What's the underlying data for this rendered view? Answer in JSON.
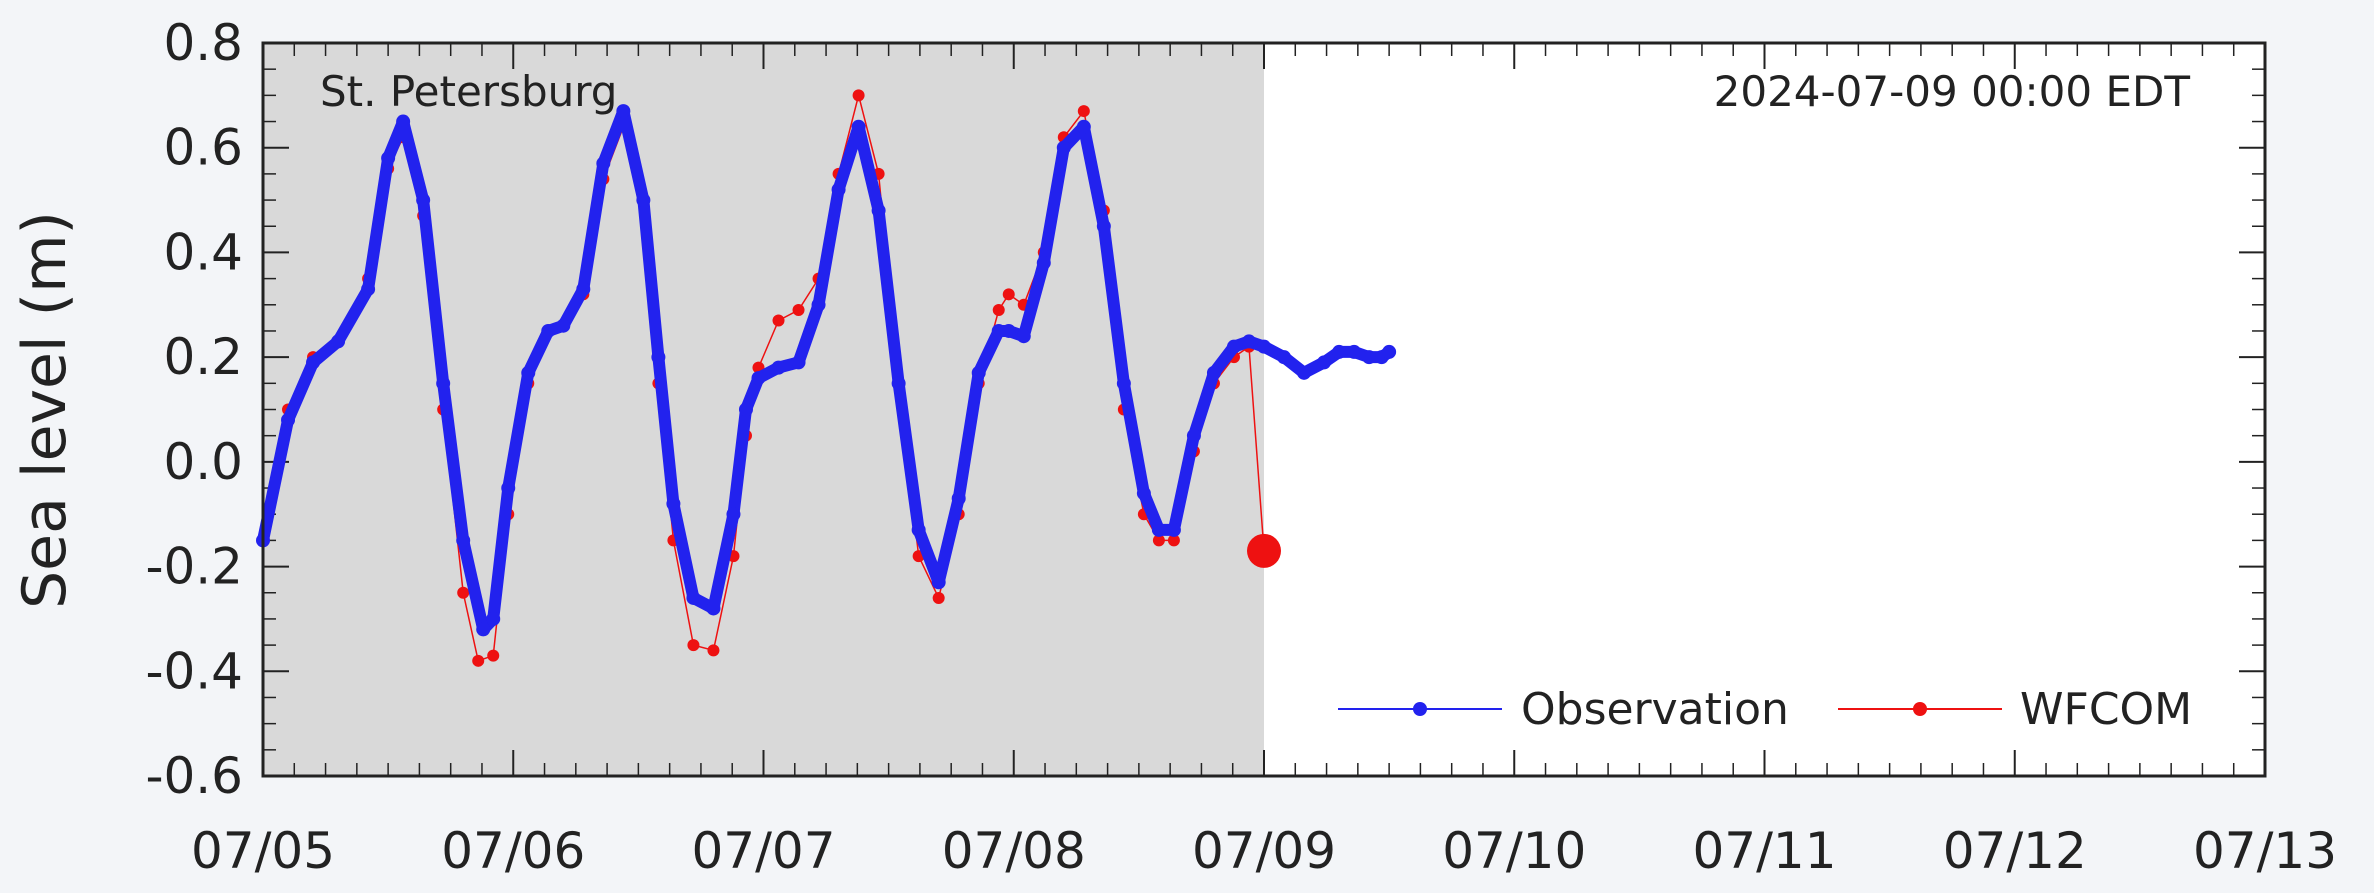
{
  "chart_data": {
    "type": "line",
    "title": "",
    "ylabel": "Sea level (m)",
    "xlabel": "",
    "station": "St. Petersburg",
    "timestamp": "2024-07-09 00:00 EDT",
    "xlim": [
      0,
      8
    ],
    "ylim": [
      -0.6,
      0.8
    ],
    "xtick_values": [
      0,
      1,
      2,
      3,
      4,
      5,
      6,
      7,
      8
    ],
    "xtick_labels": [
      "07/05",
      "07/06",
      "07/07",
      "07/08",
      "07/09",
      "07/10",
      "07/11",
      "07/12",
      "07/13"
    ],
    "ytick_values": [
      -0.6,
      -0.4,
      -0.2,
      0.0,
      0.2,
      0.4,
      0.6,
      0.8
    ],
    "ytick_labels": [
      "-0.6",
      "-0.4",
      "-0.2",
      "0.0",
      "0.2",
      "0.4",
      "0.6",
      "0.8"
    ],
    "x_unit": "days after 07/05 00:00",
    "shaded_region": [
      0,
      4
    ],
    "shaded_color": "#d9d9d9",
    "grid": false,
    "legend_position": "bottom-right",
    "series": [
      {
        "name": "Observation",
        "color": "#2222ee",
        "x": [
          0.0,
          0.1,
          0.2,
          0.3,
          0.42,
          0.5,
          0.56,
          0.64,
          0.72,
          0.8,
          0.88,
          0.92,
          0.98,
          1.06,
          1.14,
          1.2,
          1.28,
          1.36,
          1.44,
          1.52,
          1.58,
          1.64,
          1.72,
          1.8,
          1.88,
          1.93,
          1.98,
          2.06,
          2.14,
          2.22,
          2.3,
          2.38,
          2.46,
          2.54,
          2.62,
          2.7,
          2.78,
          2.86,
          2.94,
          2.98,
          3.04,
          3.12,
          3.2,
          3.28,
          3.36,
          3.44,
          3.52,
          3.58,
          3.64,
          3.72,
          3.8,
          3.88,
          3.94,
          4.0,
          4.08,
          4.16,
          4.24,
          4.3,
          4.36,
          4.42,
          4.47,
          4.5
        ],
        "values": [
          -0.15,
          0.08,
          0.19,
          0.23,
          0.33,
          0.58,
          0.65,
          0.5,
          0.15,
          -0.15,
          -0.32,
          -0.3,
          -0.05,
          0.17,
          0.25,
          0.26,
          0.33,
          0.57,
          0.67,
          0.5,
          0.2,
          -0.08,
          -0.26,
          -0.28,
          -0.1,
          0.1,
          0.16,
          0.18,
          0.19,
          0.3,
          0.52,
          0.64,
          0.48,
          0.15,
          -0.13,
          -0.23,
          -0.07,
          0.17,
          0.25,
          0.25,
          0.24,
          0.38,
          0.6,
          0.64,
          0.45,
          0.15,
          -0.06,
          -0.13,
          -0.13,
          0.05,
          0.17,
          0.22,
          0.23,
          0.22,
          0.2,
          0.17,
          0.19,
          0.21,
          0.21,
          0.2,
          0.2,
          0.21
        ]
      },
      {
        "name": "WFCOM",
        "color": "#ee1111",
        "x": [
          0.0,
          0.1,
          0.2,
          0.3,
          0.42,
          0.5,
          0.56,
          0.64,
          0.72,
          0.8,
          0.86,
          0.92,
          0.98,
          1.06,
          1.14,
          1.2,
          1.28,
          1.36,
          1.44,
          1.52,
          1.58,
          1.64,
          1.72,
          1.8,
          1.88,
          1.93,
          1.98,
          2.06,
          2.14,
          2.22,
          2.3,
          2.38,
          2.46,
          2.54,
          2.62,
          2.7,
          2.78,
          2.86,
          2.94,
          2.98,
          3.04,
          3.12,
          3.2,
          3.28,
          3.36,
          3.44,
          3.52,
          3.58,
          3.64,
          3.72,
          3.8,
          3.88,
          3.94,
          4.0
        ],
        "values": [
          -0.15,
          0.1,
          0.2,
          0.23,
          0.35,
          0.56,
          0.62,
          0.47,
          0.1,
          -0.25,
          -0.38,
          -0.37,
          -0.1,
          0.15,
          0.25,
          0.26,
          0.32,
          0.54,
          0.64,
          0.5,
          0.15,
          -0.15,
          -0.35,
          -0.36,
          -0.18,
          0.05,
          0.18,
          0.27,
          0.29,
          0.35,
          0.55,
          0.7,
          0.55,
          0.15,
          -0.18,
          -0.26,
          -0.1,
          0.15,
          0.29,
          0.32,
          0.3,
          0.4,
          0.62,
          0.67,
          0.48,
          0.1,
          -0.1,
          -0.15,
          -0.15,
          0.02,
          0.15,
          0.2,
          0.22,
          -0.17
        ]
      }
    ],
    "current_marker": {
      "x": 4.0,
      "y": -0.17,
      "color": "#ee1111"
    }
  },
  "legend": {
    "items": [
      {
        "label": "Observation",
        "color": "#2222ee"
      },
      {
        "label": "WFCOM",
        "color": "#ee1111"
      }
    ]
  }
}
